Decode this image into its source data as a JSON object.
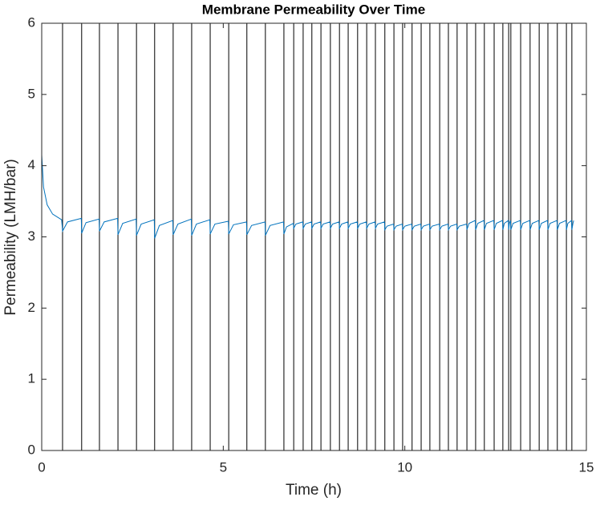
{
  "chart_data": {
    "type": "line",
    "title": "Membrane Permeability Over Time",
    "x_label": "Time (h)",
    "y_label": "Permeability (LMH/bar)",
    "xlim": [
      0,
      15
    ],
    "ylim": [
      0,
      6
    ],
    "xticks": [
      0,
      5,
      10,
      15
    ],
    "yticks": [
      0,
      1,
      2,
      3,
      4,
      5,
      6
    ],
    "grid": false,
    "series": [
      {
        "color": "#0072bd",
        "x": [
          0,
          0.05,
          0.15,
          0.3,
          0.55,
          0.574,
          0.71,
          1.09,
          1.1,
          1.22,
          1.58,
          1.59,
          1.72,
          2.09,
          2.1,
          2.23,
          2.6,
          2.61,
          2.74,
          3.1,
          3.11,
          3.24,
          3.61,
          3.62,
          3.75,
          4.12,
          4.13,
          4.26,
          4.63,
          4.64,
          4.77,
          5.14,
          5.15,
          5.28,
          5.64,
          5.65,
          5.78,
          6.15,
          6.16,
          6.29,
          6.66,
          6.67,
          6.74,
          6.93,
          6.94,
          7.0,
          7.19,
          7.2,
          7.26,
          7.43,
          7.44,
          7.5,
          7.68,
          7.69,
          7.75,
          7.94,
          7.95,
          8.01,
          8.19,
          8.2,
          8.26,
          8.43,
          8.44,
          8.5,
          8.69,
          8.7,
          8.76,
          8.94,
          8.95,
          9.01,
          9.18,
          9.19,
          9.25,
          9.44,
          9.45,
          9.51,
          9.69,
          9.7,
          9.76,
          9.93,
          9.94,
          10.0,
          10.19,
          10.2,
          10.26,
          10.44,
          10.45,
          10.51,
          10.68,
          10.69,
          10.75,
          10.95,
          10.96,
          11.02,
          11.19,
          11.2,
          11.26,
          11.43,
          11.44,
          11.5,
          11.7,
          11.71,
          11.77,
          11.94,
          11.95,
          12.01,
          12.18,
          12.19,
          12.25,
          12.45,
          12.46,
          12.52,
          12.69,
          12.7,
          12.74,
          12.85,
          12.86,
          12.88,
          12.91,
          12.92,
          12.98,
          13.18,
          13.19,
          13.25,
          13.44,
          13.45,
          13.51,
          13.69,
          13.7,
          13.76,
          13.93,
          13.94,
          14.0,
          14.19,
          14.2,
          14.26,
          14.44,
          14.45,
          14.49,
          14.59,
          14.6,
          14.63,
          14.65
        ],
        "values": [
          4.15,
          3.7,
          3.45,
          3.32,
          3.24,
          3.08,
          3.21,
          3.26,
          3.05,
          3.2,
          3.25,
          3.08,
          3.21,
          3.26,
          3.03,
          3.19,
          3.25,
          3.02,
          3.18,
          3.24,
          2.98,
          3.16,
          3.23,
          3.03,
          3.18,
          3.25,
          3.02,
          3.18,
          3.24,
          3.04,
          3.18,
          3.22,
          3.04,
          3.17,
          3.21,
          3.03,
          3.16,
          3.21,
          3.02,
          3.16,
          3.21,
          3.04,
          3.14,
          3.19,
          3.12,
          3.18,
          3.21,
          3.12,
          3.18,
          3.21,
          3.12,
          3.18,
          3.21,
          3.12,
          3.18,
          3.21,
          3.12,
          3.18,
          3.21,
          3.12,
          3.18,
          3.21,
          3.12,
          3.18,
          3.21,
          3.12,
          3.18,
          3.21,
          3.12,
          3.18,
          3.21,
          3.12,
          3.18,
          3.21,
          3.1,
          3.15,
          3.18,
          3.1,
          3.15,
          3.18,
          3.1,
          3.15,
          3.18,
          3.1,
          3.15,
          3.18,
          3.1,
          3.15,
          3.18,
          3.1,
          3.15,
          3.18,
          3.1,
          3.15,
          3.18,
          3.1,
          3.15,
          3.18,
          3.1,
          3.15,
          3.18,
          3.1,
          3.19,
          3.23,
          3.1,
          3.19,
          3.23,
          3.1,
          3.19,
          3.23,
          3.1,
          3.19,
          3.23,
          3.1,
          3.19,
          3.23,
          3.1,
          3.19,
          3.23,
          3.1,
          3.19,
          3.23,
          3.1,
          3.19,
          3.23,
          3.1,
          3.19,
          3.23,
          3.1,
          3.19,
          3.23,
          3.1,
          3.19,
          3.23,
          3.1,
          3.19,
          3.23,
          3.1,
          3.19,
          3.23,
          3.1,
          3.19,
          3.23
        ]
      }
    ],
    "xlines_color": "#000000",
    "xlines": [
      0.574,
      1.1,
      1.59,
      2.1,
      2.61,
      3.11,
      3.62,
      4.13,
      4.64,
      5.15,
      5.65,
      6.16,
      6.67,
      6.94,
      7.2,
      7.44,
      7.69,
      7.95,
      8.2,
      8.44,
      8.7,
      8.95,
      9.19,
      9.45,
      9.7,
      9.94,
      10.2,
      10.45,
      10.69,
      10.96,
      11.2,
      11.44,
      11.71,
      11.95,
      12.19,
      12.46,
      12.7,
      12.86,
      12.92,
      13.19,
      13.45,
      13.7,
      13.94,
      14.2,
      14.45,
      14.6
    ]
  }
}
